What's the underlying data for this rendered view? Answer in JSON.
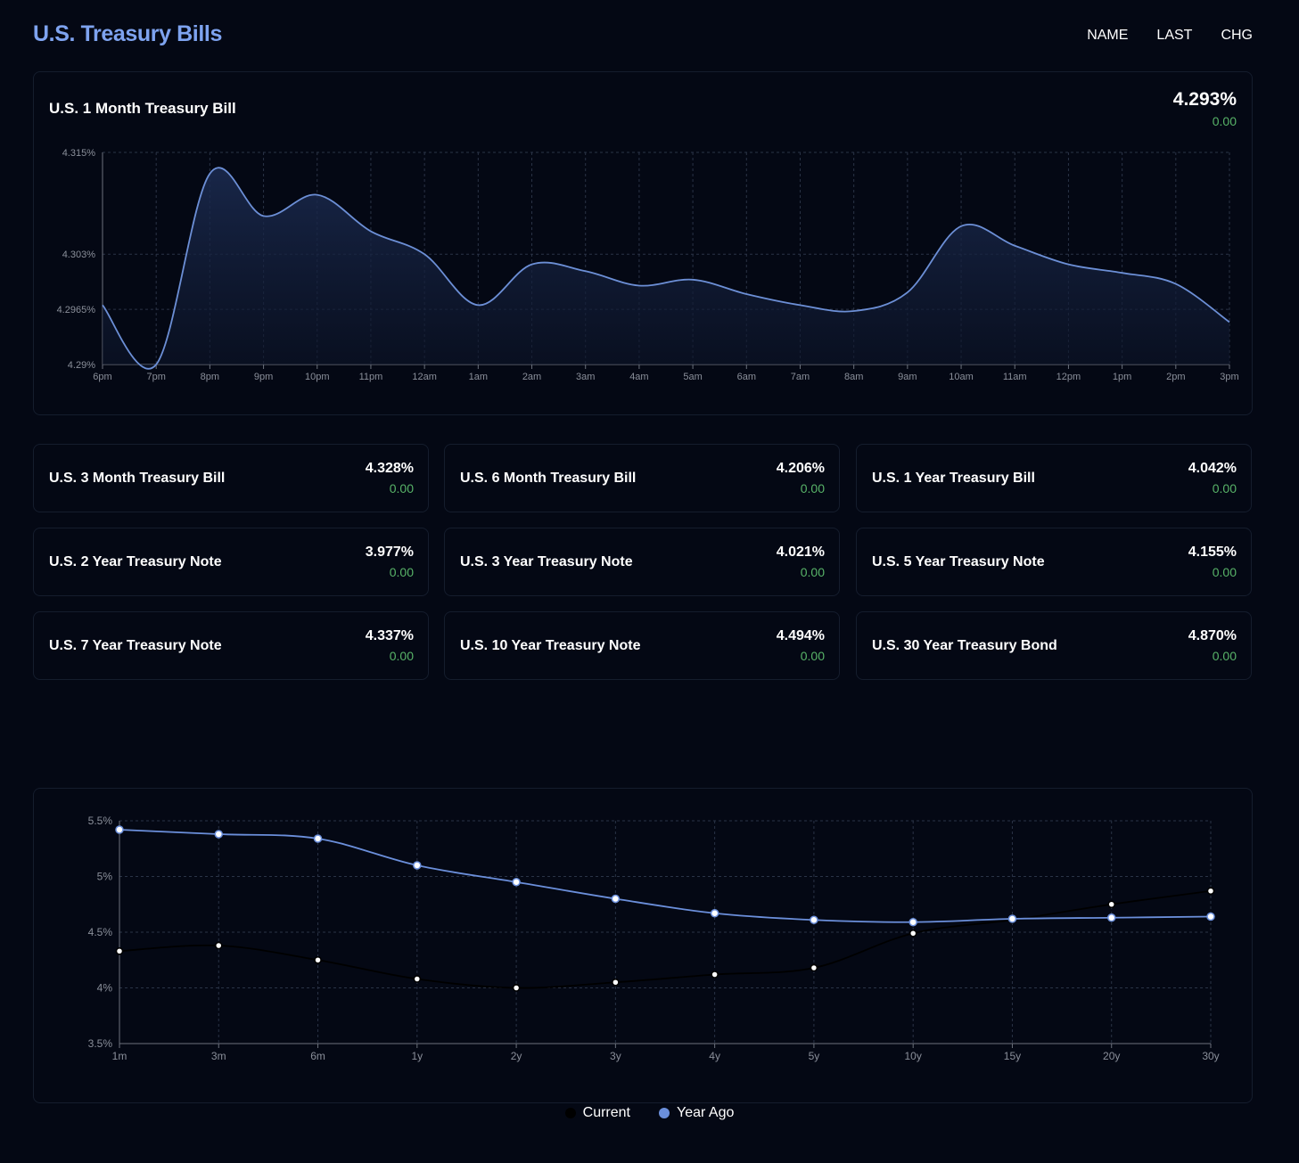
{
  "header": {
    "title": "U.S. Treasury Bills",
    "nav": [
      "NAME",
      "LAST",
      "CHG"
    ]
  },
  "main": {
    "name": "U.S. 1 Month Treasury Bill",
    "value": "4.293%",
    "change": "0.00"
  },
  "tiles": [
    {
      "name": "U.S. 3 Month Treasury Bill",
      "value": "4.328%",
      "change": "0.00"
    },
    {
      "name": "U.S. 6 Month Treasury Bill",
      "value": "4.206%",
      "change": "0.00"
    },
    {
      "name": "U.S. 1 Year Treasury Bill",
      "value": "4.042%",
      "change": "0.00"
    },
    {
      "name": "U.S. 2 Year Treasury Note",
      "value": "3.977%",
      "change": "0.00"
    },
    {
      "name": "U.S. 3 Year Treasury Note",
      "value": "4.021%",
      "change": "0.00"
    },
    {
      "name": "U.S. 5 Year Treasury Note",
      "value": "4.155%",
      "change": "0.00"
    },
    {
      "name": "U.S. 7 Year Treasury Note",
      "value": "4.337%",
      "change": "0.00"
    },
    {
      "name": "U.S. 10 Year Treasury Note",
      "value": "4.494%",
      "change": "0.00"
    },
    {
      "name": "U.S. 30 Year Treasury Bond",
      "value": "4.870%",
      "change": "0.00"
    }
  ],
  "colors": {
    "accent": "#7ea3ef",
    "positive": "#58b368",
    "line": "#6c8fd6",
    "year_ago": "#6b8fdb",
    "current": "#000000"
  },
  "chart_data": [
    {
      "type": "area",
      "categories": [
        "6pm",
        "7pm",
        "8pm",
        "9pm",
        "10pm",
        "11pm",
        "12am",
        "1am",
        "2am",
        "3am",
        "4am",
        "5am",
        "6am",
        "7am",
        "8am",
        "9am",
        "10am",
        "11am",
        "12pm",
        "1pm",
        "2pm",
        "3pm"
      ],
      "series": [
        {
          "values": [
            4.297,
            4.29,
            4.3125,
            4.3075,
            4.31,
            4.3057,
            4.303,
            4.297,
            4.3018,
            4.301,
            4.2993,
            4.3,
            4.2983,
            4.297,
            4.2963,
            4.2985,
            4.3063,
            4.304,
            4.3018,
            4.3008,
            4.2995,
            4.295
          ]
        }
      ],
      "yticks": [
        "4.29%",
        "4.2965%",
        "4.303%",
        "4.315%"
      ],
      "ytick_values": [
        4.29,
        4.2965,
        4.303,
        4.315
      ],
      "ylim": [
        4.29,
        4.315
      ],
      "grid": true
    },
    {
      "type": "line",
      "categories": [
        "1m",
        "3m",
        "6m",
        "1y",
        "2y",
        "3y",
        "4y",
        "5y",
        "10y",
        "15y",
        "20y",
        "30y"
      ],
      "series": [
        {
          "name": "Current",
          "values": [
            4.33,
            4.38,
            4.25,
            4.08,
            4.0,
            4.05,
            4.12,
            4.18,
            4.49,
            4.61,
            4.75,
            4.87
          ]
        },
        {
          "name": "Year Ago",
          "values": [
            5.42,
            5.38,
            5.34,
            5.1,
            4.95,
            4.8,
            4.67,
            4.61,
            4.59,
            4.62,
            4.63,
            4.64
          ]
        }
      ],
      "yticks": [
        "3.5%",
        "4%",
        "4.5%",
        "5%",
        "5.5%"
      ],
      "ytick_values": [
        3.5,
        4,
        4.5,
        5,
        5.5
      ],
      "ylim": [
        3.5,
        5.5
      ],
      "grid": true,
      "legend": "bottom-center"
    }
  ]
}
